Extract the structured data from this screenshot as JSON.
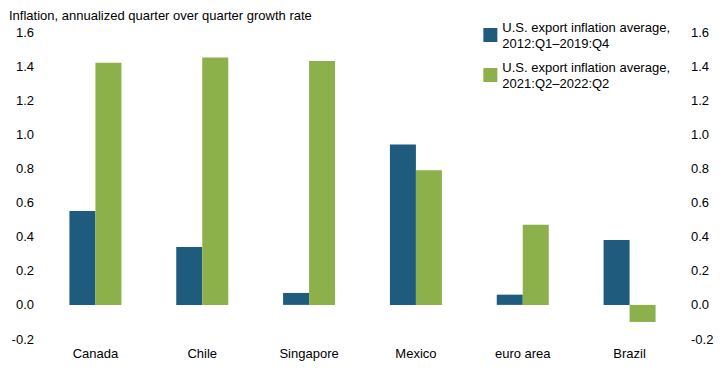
{
  "chart_data": {
    "type": "bar",
    "title": "Inflation, annualized quarter over quarter growth rate",
    "categories": [
      "Canada",
      "Chile",
      "Singapore",
      "Mexico",
      "euro area",
      "Brazil"
    ],
    "series": [
      {
        "name": "U.S. export inflation average, 2012:Q1–2019:Q4",
        "color": "#1f5b7d",
        "values": [
          0.55,
          0.34,
          0.07,
          0.94,
          0.06,
          0.38
        ]
      },
      {
        "name": "U.S. export inflation average, 2021:Q2–2022:Q2",
        "color": "#8cb04a",
        "values": [
          1.42,
          1.45,
          1.43,
          0.79,
          0.47,
          -0.1
        ]
      }
    ],
    "ylim": [
      -0.2,
      1.6
    ],
    "yticks": [
      -0.2,
      {
        "value": 0,
        "label": "0.0"
      },
      0.2,
      0.4,
      0.6,
      0.8,
      {
        "value": 1,
        "label": "1.0"
      },
      1.2,
      1.4,
      1.6
    ],
    "y2lim": [
      -0.2,
      1.6
    ],
    "y2ticks": [
      -0.2,
      {
        "value": 0,
        "label": "0.0"
      },
      0.2,
      0.4,
      0.6,
      0.8,
      {
        "value": 1,
        "label": "1.0"
      },
      1.2,
      1.4,
      1.6
    ],
    "grid": false,
    "legend": "top-right",
    "data_labels": false
  }
}
